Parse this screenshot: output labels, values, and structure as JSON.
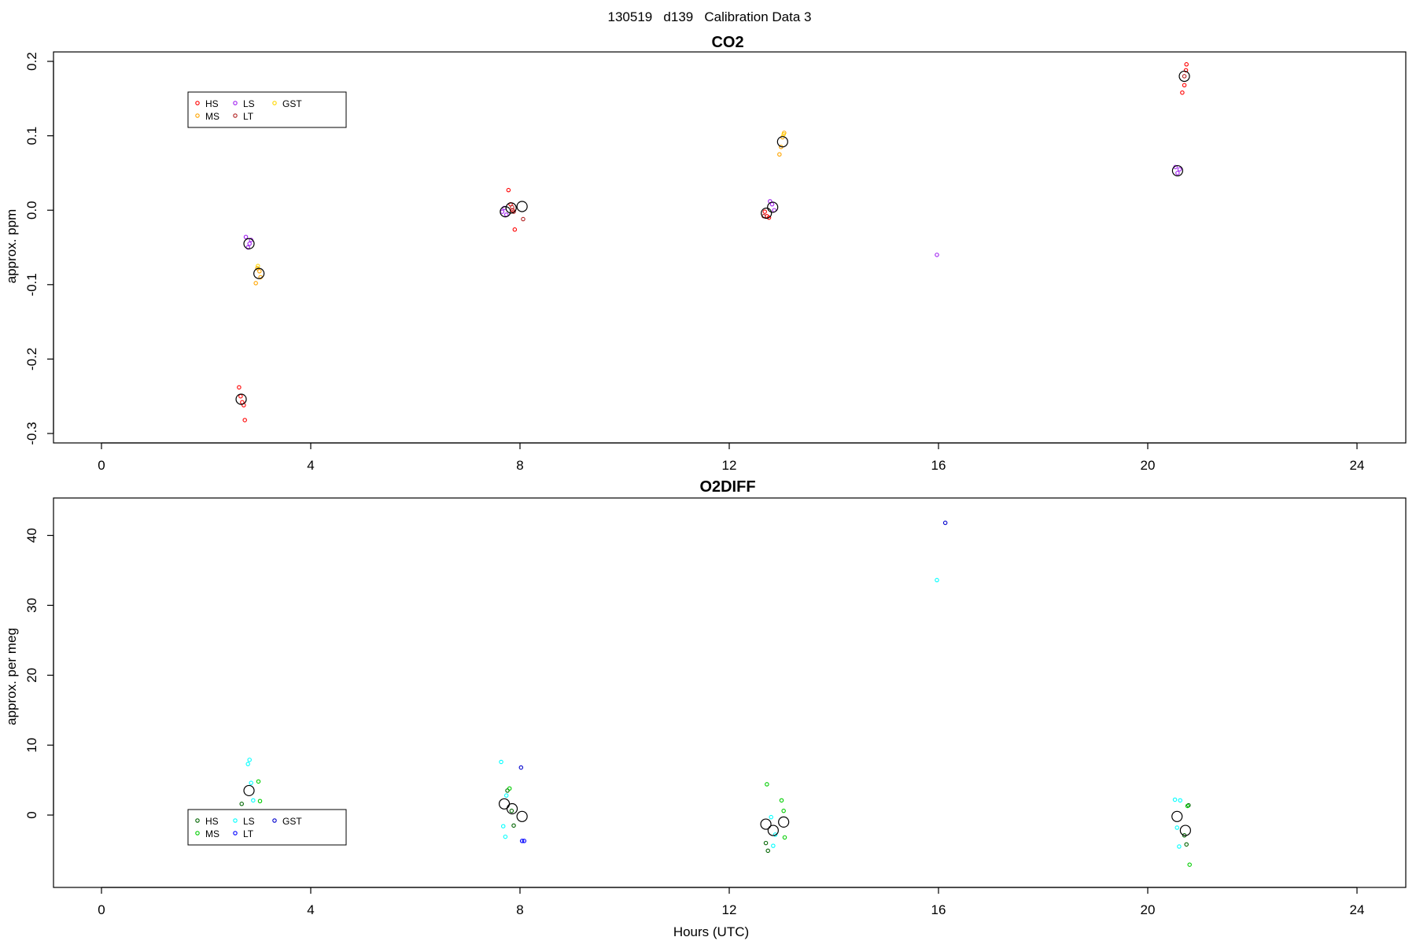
{
  "page_title": "130519   d139   Calibration Data 3",
  "colors": {
    "HS": "#ff0000",
    "MS": "#ffa500",
    "LS": "#a020f0",
    "LT": "#b22222",
    "GST": "#ffd700",
    "O2_HS": "#006400",
    "O2_MS": "#00cd00",
    "O2_LS": "#00ffff",
    "O2_LT": "#0000ff",
    "O2_GST": "#0000cd",
    "mean": "#000000"
  },
  "chart_data": [
    {
      "type": "scatter",
      "title": "CO2",
      "xlabel": "",
      "ylabel": "approx. ppm",
      "xlim": [
        0,
        24
      ],
      "ylim": [
        -0.3,
        0.2
      ],
      "xticks": [
        0,
        4,
        8,
        12,
        16,
        20,
        24
      ],
      "yticks": [
        -0.3,
        -0.2,
        -0.1,
        0.0,
        0.1,
        0.2
      ],
      "ytick_labels": [
        "-0.3",
        "-0.2",
        "-0.1",
        "0.0",
        "0.1",
        "0.2"
      ],
      "grid": false,
      "legend_position": "top-left",
      "legend": [
        {
          "label": "HS",
          "color_key": "HS"
        },
        {
          "label": "MS",
          "color_key": "MS"
        },
        {
          "label": "LS",
          "color_key": "LS"
        },
        {
          "label": "LT",
          "color_key": "LT"
        },
        {
          "label": "GST",
          "color_key": "GST"
        }
      ],
      "series": [
        {
          "name": "HS",
          "color_key": "HS",
          "x": [
            2.63,
            2.66,
            2.69,
            2.72,
            2.74,
            7.78,
            7.82,
            7.86,
            7.9,
            12.68,
            12.72,
            12.76,
            20.66,
            20.7,
            20.73,
            20.74
          ],
          "y": [
            -0.238,
            -0.25,
            -0.258,
            -0.262,
            -0.282,
            0.027,
            0.008,
            0.0,
            -0.026,
            -0.002,
            -0.008,
            -0.01,
            0.158,
            0.168,
            0.188,
            0.196
          ]
        },
        {
          "name": "MS",
          "color_key": "MS",
          "x": [
            2.95,
            2.98,
            3.02,
            3.04,
            12.96,
            12.99,
            13.02,
            13.05
          ],
          "y": [
            -0.098,
            -0.078,
            -0.082,
            -0.09,
            0.075,
            0.085,
            0.098,
            0.104
          ]
        },
        {
          "name": "LS",
          "color_key": "LS",
          "x": [
            2.76,
            2.8,
            2.83,
            2.86,
            7.66,
            7.7,
            7.74,
            12.78,
            12.82,
            12.86,
            15.97,
            20.53,
            20.57,
            20.61
          ],
          "y": [
            -0.036,
            -0.05,
            -0.045,
            -0.04,
            -0.002,
            0.003,
            -0.006,
            0.012,
            0.008,
            0.0,
            -0.06,
            0.058,
            0.05,
            0.055
          ]
        },
        {
          "name": "LT",
          "color_key": "LT",
          "x": [
            7.85,
            7.88,
            8.06,
            12.66,
            20.7
          ],
          "y": [
            0.004,
            -0.002,
            -0.012,
            -0.008,
            0.18
          ]
        },
        {
          "name": "GST",
          "color_key": "GST",
          "x": [
            2.99,
            13.04
          ],
          "y": [
            -0.075,
            0.102
          ]
        }
      ],
      "means": {
        "x": [
          2.67,
          2.82,
          3.01,
          7.72,
          7.83,
          8.04,
          12.71,
          12.83,
          13.02,
          20.57,
          20.7
        ],
        "y": [
          -0.254,
          -0.045,
          -0.085,
          -0.002,
          0.003,
          0.005,
          -0.004,
          0.004,
          0.092,
          0.053,
          0.18
        ]
      }
    },
    {
      "type": "scatter",
      "title": "O2DIFF",
      "xlabel": "Hours (UTC)",
      "ylabel": "approx. per meg",
      "xlim": [
        0,
        24
      ],
      "ylim": [
        -9,
        44
      ],
      "xticks": [
        0,
        4,
        8,
        12,
        16,
        20,
        24
      ],
      "yticks": [
        0,
        10,
        20,
        30,
        40
      ],
      "ytick_labels": [
        "0",
        "10",
        "20",
        "30",
        "40"
      ],
      "grid": false,
      "legend_position": "bottom-left",
      "legend": [
        {
          "label": "HS",
          "color_key": "O2_HS"
        },
        {
          "label": "MS",
          "color_key": "O2_MS"
        },
        {
          "label": "LS",
          "color_key": "O2_LS"
        },
        {
          "label": "LT",
          "color_key": "O2_LT"
        },
        {
          "label": "GST",
          "color_key": "O2_GST"
        }
      ],
      "series": [
        {
          "name": "HS",
          "color_key": "O2_HS",
          "x": [
            2.68,
            2.72,
            7.76,
            7.84,
            7.88,
            12.7,
            12.74,
            20.7,
            20.74,
            20.78
          ],
          "y": [
            1.6,
            -3.3,
            3.5,
            0.6,
            -1.5,
            -4.0,
            -5.1,
            -2.9,
            -4.2,
            1.4
          ]
        },
        {
          "name": "MS",
          "color_key": "O2_MS",
          "x": [
            2.96,
            3.0,
            3.03,
            7.8,
            12.72,
            13.0,
            13.04,
            13.06,
            20.76,
            20.8
          ],
          "y": [
            -3.3,
            4.8,
            2.0,
            3.8,
            4.4,
            2.1,
            0.6,
            -3.2,
            1.3,
            -7.1
          ]
        },
        {
          "name": "LS",
          "color_key": "O2_LS",
          "x": [
            2.8,
            2.83,
            2.86,
            2.9,
            7.64,
            7.68,
            7.72,
            7.74,
            12.8,
            12.84,
            12.88,
            15.97,
            20.52,
            20.56,
            20.6,
            20.62
          ],
          "y": [
            7.3,
            7.9,
            4.6,
            2.1,
            7.6,
            -1.6,
            -3.1,
            2.8,
            -0.3,
            -4.4,
            -2.8,
            33.6,
            2.2,
            -1.8,
            -4.5,
            2.1
          ]
        },
        {
          "name": "LT",
          "color_key": "O2_LT",
          "x": [
            8.04,
            8.08
          ],
          "y": [
            -3.7,
            -3.7
          ]
        },
        {
          "name": "GST",
          "color_key": "O2_GST",
          "x": [
            8.02,
            16.13
          ],
          "y": [
            6.8,
            41.8
          ]
        }
      ],
      "means": {
        "x": [
          2.82,
          7.7,
          7.85,
          8.04,
          12.7,
          12.84,
          13.04,
          20.56,
          20.72
        ],
        "y": [
          3.5,
          1.6,
          0.9,
          -0.2,
          -1.3,
          -2.2,
          -1.0,
          -0.2,
          -2.2
        ]
      }
    }
  ]
}
